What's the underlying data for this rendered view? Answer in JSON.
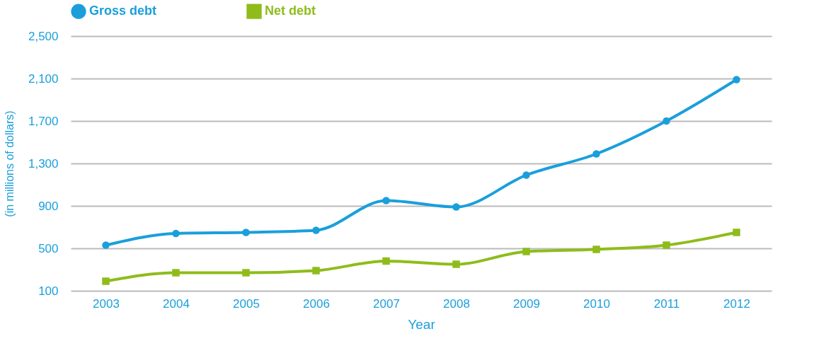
{
  "chart_data": {
    "type": "line",
    "xlabel": "Year",
    "ylabel": "(in millions of dollars)",
    "categories": [
      "2003",
      "2004",
      "2005",
      "2006",
      "2007",
      "2008",
      "2009",
      "2010",
      "2011",
      "2012"
    ],
    "series": [
      {
        "name": "Gross debt",
        "color": "#1a9fdb",
        "marker": "circle",
        "values": [
          530,
          640,
          650,
          670,
          950,
          890,
          1190,
          1390,
          1700,
          2090
        ]
      },
      {
        "name": "Net debt",
        "color": "#8fbc1a",
        "marker": "square",
        "values": [
          190,
          270,
          270,
          290,
          380,
          350,
          470,
          490,
          530,
          650
        ]
      }
    ],
    "ylim": [
      100,
      2500
    ],
    "yticks": [
      {
        "value": 100,
        "label": "100"
      },
      {
        "value": 500,
        "label": "500"
      },
      {
        "value": 900,
        "label": "900"
      },
      {
        "value": 1300,
        "label": "1,300"
      },
      {
        "value": 1700,
        "label": "1,700"
      },
      {
        "value": 2100,
        "label": "2,100"
      },
      {
        "value": 2500,
        "label": "2,500"
      }
    ],
    "grid": "y",
    "legend": "top",
    "line_style": "solid"
  }
}
